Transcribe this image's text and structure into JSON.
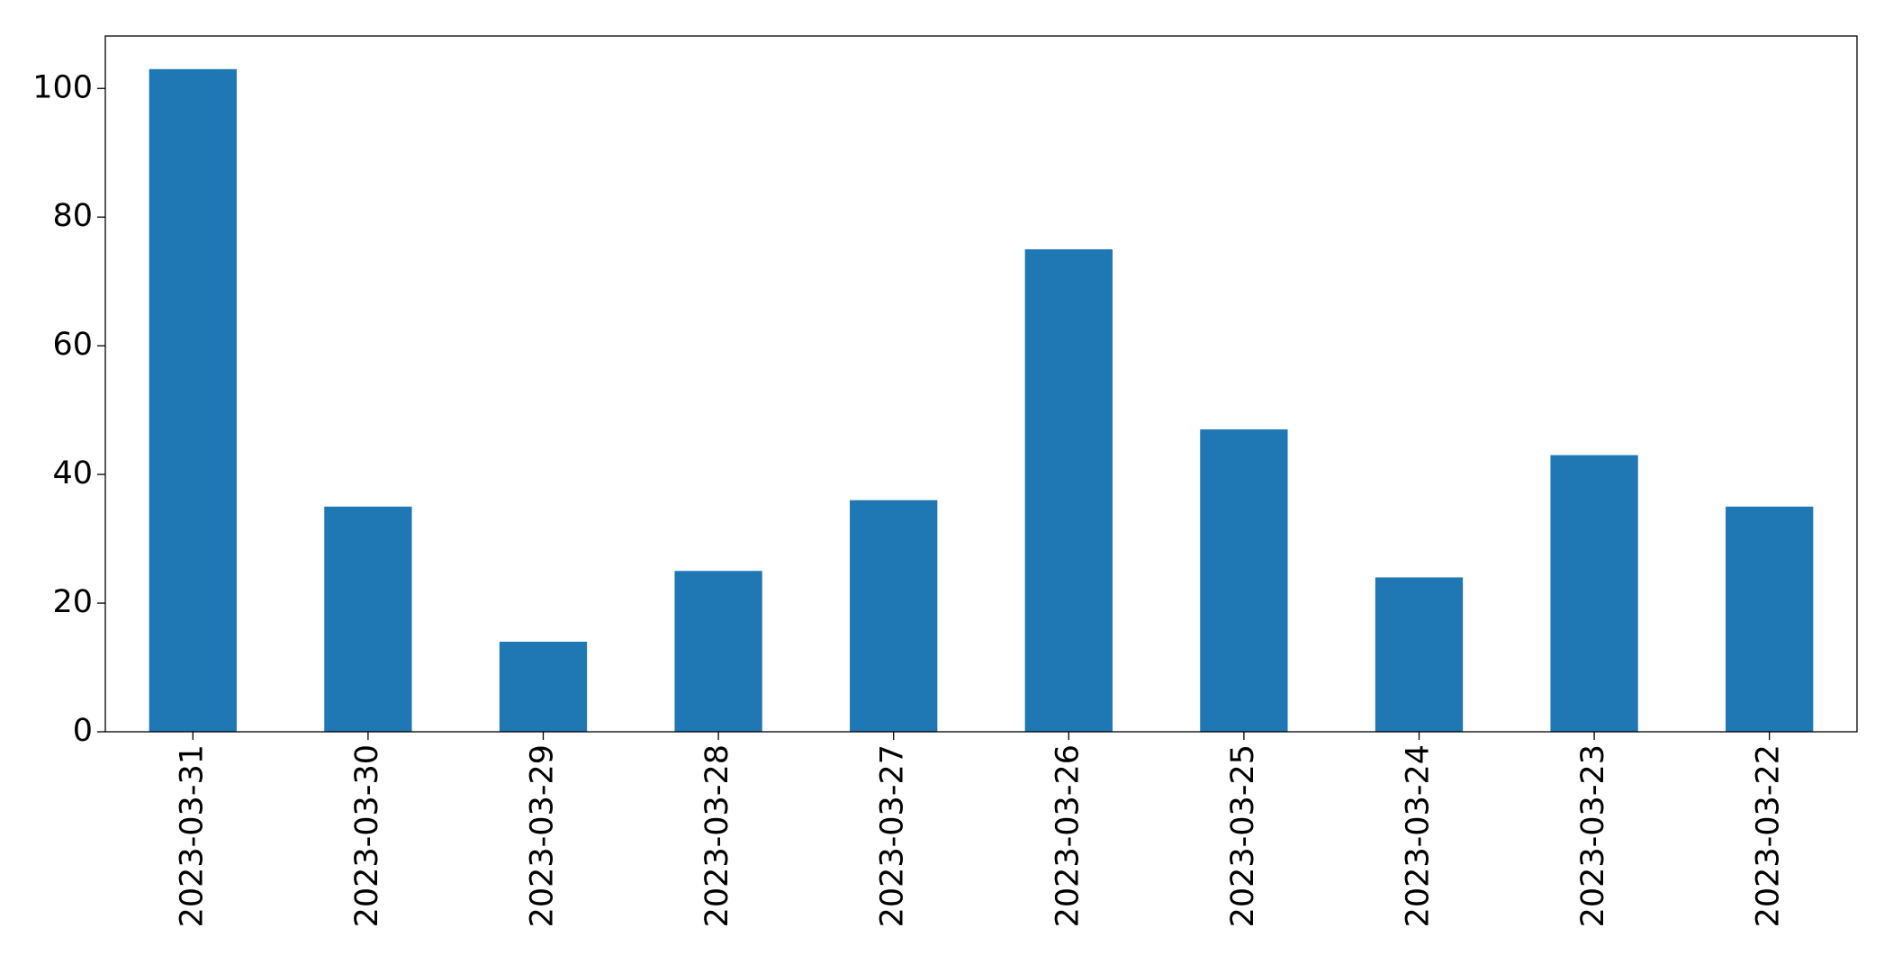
{
  "chart_data": {
    "type": "bar",
    "categories": [
      "2023-03-31",
      "2023-03-30",
      "2023-03-29",
      "2023-03-28",
      "2023-03-27",
      "2023-03-26",
      "2023-03-25",
      "2023-03-24",
      "2023-03-23",
      "2023-03-22"
    ],
    "values": [
      103,
      35,
      14,
      25,
      36,
      75,
      47,
      24,
      43,
      35
    ],
    "color": "#1f77b4",
    "ylim": [
      0,
      108.15
    ],
    "yticks": [
      0,
      20,
      40,
      60,
      80,
      100
    ],
    "grid": false
  }
}
